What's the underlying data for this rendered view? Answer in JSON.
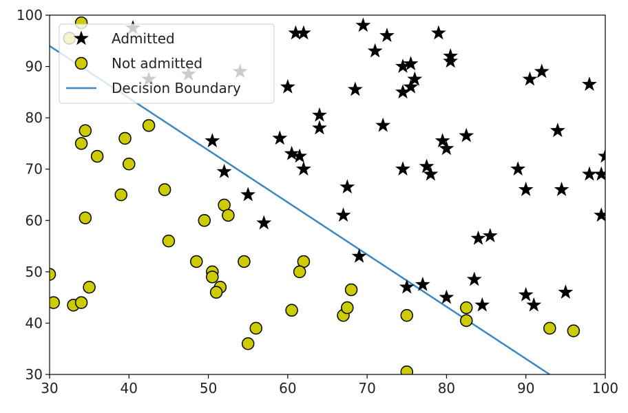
{
  "chart_data": {
    "type": "scatter",
    "xlim": [
      30,
      100
    ],
    "ylim": [
      30,
      100
    ],
    "x_ticks": [
      30,
      40,
      50,
      60,
      70,
      80,
      90,
      100
    ],
    "y_ticks": [
      30,
      40,
      50,
      60,
      70,
      80,
      90,
      100
    ],
    "grid": false,
    "legend_position": "top-left",
    "legend": [
      "Admitted",
      "Not admitted",
      "Decision Boundary"
    ],
    "series": [
      {
        "name": "Admitted",
        "marker": "star",
        "color": "#000000",
        "points": [
          [
            40.5,
            97.5
          ],
          [
            42.5,
            87.5
          ],
          [
            47.5,
            88.5
          ],
          [
            54,
            89
          ],
          [
            61,
            96.5
          ],
          [
            62,
            96.5
          ],
          [
            69.5,
            98
          ],
          [
            71,
            93
          ],
          [
            72.5,
            96
          ],
          [
            79,
            96.5
          ],
          [
            80.5,
            92
          ],
          [
            80.5,
            91
          ],
          [
            60,
            86
          ],
          [
            68.5,
            85.5
          ],
          [
            74.5,
            90
          ],
          [
            75.5,
            90.5
          ],
          [
            76,
            87.5
          ],
          [
            75.5,
            86
          ],
          [
            74.5,
            85
          ],
          [
            64,
            80.5
          ],
          [
            64,
            78
          ],
          [
            72,
            78.5
          ],
          [
            50.5,
            75.5
          ],
          [
            59,
            76
          ],
          [
            60.5,
            73
          ],
          [
            61.5,
            72.5
          ],
          [
            62,
            70
          ],
          [
            52,
            69.5
          ],
          [
            67.5,
            66.5
          ],
          [
            55,
            65
          ],
          [
            57,
            59.5
          ],
          [
            67,
            61
          ],
          [
            69,
            53
          ],
          [
            74.5,
            70
          ],
          [
            77.5,
            70.5
          ],
          [
            78,
            69
          ],
          [
            79.5,
            75.5
          ],
          [
            80,
            74
          ],
          [
            82.5,
            76.5
          ],
          [
            75,
            47
          ],
          [
            77,
            47.5
          ],
          [
            80,
            45
          ],
          [
            83.5,
            48.5
          ],
          [
            84,
            56.5
          ],
          [
            85.5,
            57
          ],
          [
            84.5,
            43.5
          ],
          [
            89,
            70
          ],
          [
            90,
            66
          ],
          [
            90.5,
            87.5
          ],
          [
            92,
            89
          ],
          [
            94,
            77.5
          ],
          [
            94.5,
            66
          ],
          [
            98,
            86.5
          ],
          [
            98,
            69
          ],
          [
            99.5,
            69
          ],
          [
            100,
            72.5
          ],
          [
            99.5,
            61
          ],
          [
            90,
            45.5
          ],
          [
            91,
            43.5
          ],
          [
            95,
            46
          ]
        ]
      },
      {
        "name": "Not admitted",
        "marker": "circle",
        "color": "#cccc00",
        "points": [
          [
            34,
            98.5
          ],
          [
            32.5,
            95.5
          ],
          [
            34,
            75
          ],
          [
            34.5,
            77.5
          ],
          [
            36,
            72.5
          ],
          [
            34.5,
            60.5
          ],
          [
            39.5,
            76
          ],
          [
            40,
            71
          ],
          [
            42.5,
            78.5
          ],
          [
            39,
            65
          ],
          [
            44.5,
            66
          ],
          [
            45,
            56
          ],
          [
            30,
            49.5
          ],
          [
            30.5,
            44
          ],
          [
            33,
            43.5
          ],
          [
            34,
            44
          ],
          [
            35,
            47
          ],
          [
            48.5,
            52
          ],
          [
            49.5,
            60
          ],
          [
            52,
            63
          ],
          [
            52.5,
            61
          ],
          [
            50.5,
            50
          ],
          [
            50.5,
            49
          ],
          [
            51.5,
            47
          ],
          [
            51,
            46
          ],
          [
            54.5,
            52
          ],
          [
            56,
            39
          ],
          [
            55,
            36
          ],
          [
            60.5,
            42.5
          ],
          [
            62,
            52
          ],
          [
            61.5,
            50
          ],
          [
            67,
            41.5
          ],
          [
            67.5,
            43
          ],
          [
            68,
            46.5
          ],
          [
            75,
            41.5
          ],
          [
            75,
            30.5
          ],
          [
            82.5,
            43
          ],
          [
            82.5,
            40.5
          ],
          [
            93,
            39
          ],
          [
            96,
            38.5
          ]
        ]
      }
    ],
    "decision_boundary": {
      "name": "Decision Boundary",
      "color": "#3a87c2",
      "x": [
        30,
        93
      ],
      "y": [
        94,
        30
      ]
    }
  }
}
